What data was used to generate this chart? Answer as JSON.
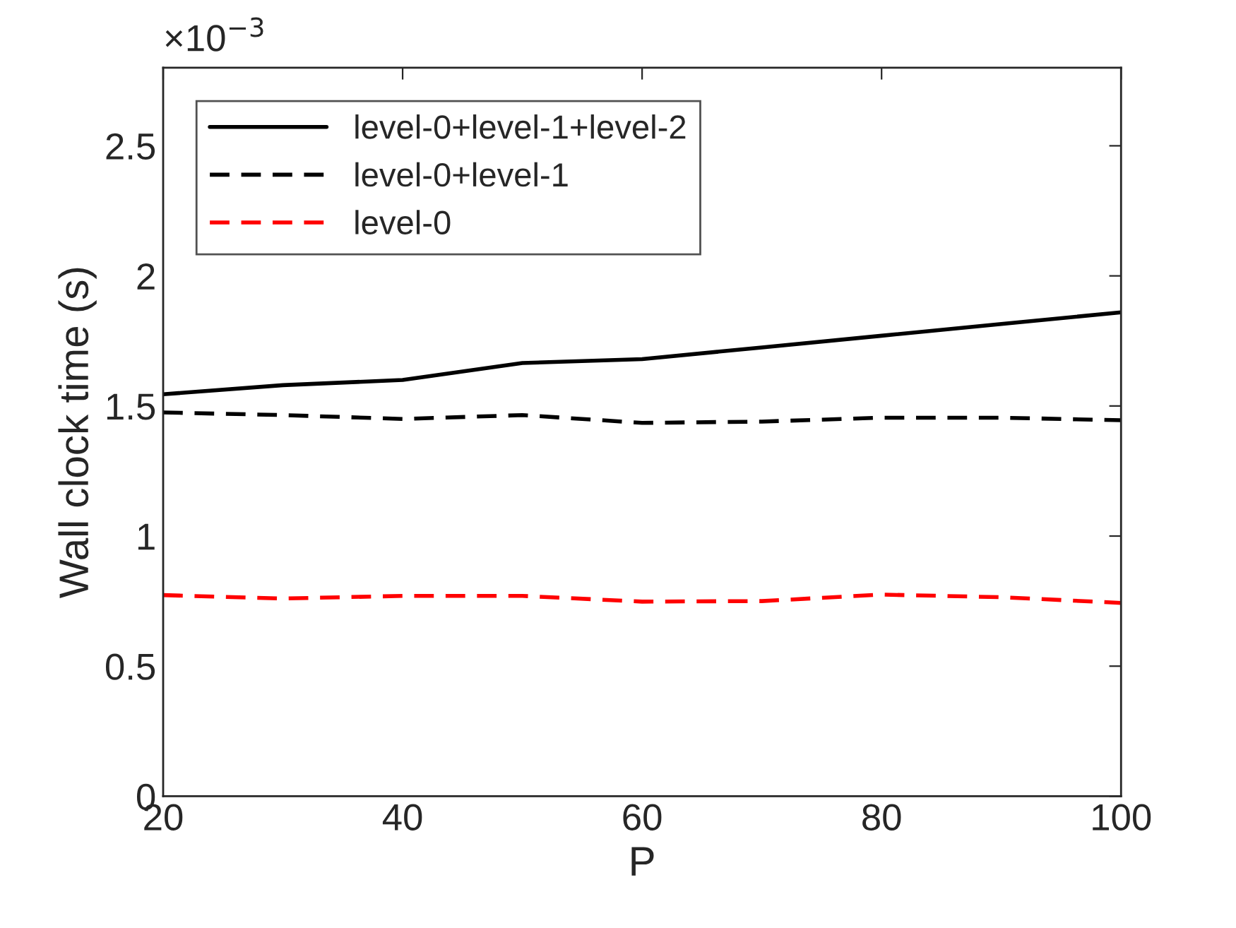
{
  "chart_data": {
    "type": "line",
    "xlabel": "P",
    "ylabel": "Wall clock time (s)",
    "annotations": [
      "×10$^{−3}$"
    ],
    "x": [
      20,
      30,
      40,
      50,
      60,
      70,
      80,
      90,
      100
    ],
    "series": [
      {
        "name": "level-0+level-1+level-2",
        "color": "#000000",
        "line_style": "solid",
        "values": [
          1.545,
          1.58,
          1.6,
          1.665,
          1.68,
          1.725,
          1.77,
          1.815,
          1.86
        ]
      },
      {
        "name": "level-0+level-1",
        "color": "#000000",
        "line_style": "dashed",
        "values": [
          1.475,
          1.465,
          1.45,
          1.465,
          1.435,
          1.44,
          1.455,
          1.455,
          1.445
        ]
      },
      {
        "name": "level-0",
        "color": "#ff0000",
        "line_style": "dashed",
        "values": [
          0.773,
          0.76,
          0.77,
          0.77,
          0.748,
          0.75,
          0.775,
          0.765,
          0.743
        ]
      }
    ],
    "xlim": [
      20,
      100
    ],
    "xticks": [
      20,
      40,
      60,
      80,
      100
    ],
    "ylim": [
      0,
      2.8
    ],
    "yticks": [
      0,
      0.5,
      1,
      1.5,
      2,
      2.5
    ],
    "grid": false,
    "legend": "top left",
    "marker": "none"
  }
}
